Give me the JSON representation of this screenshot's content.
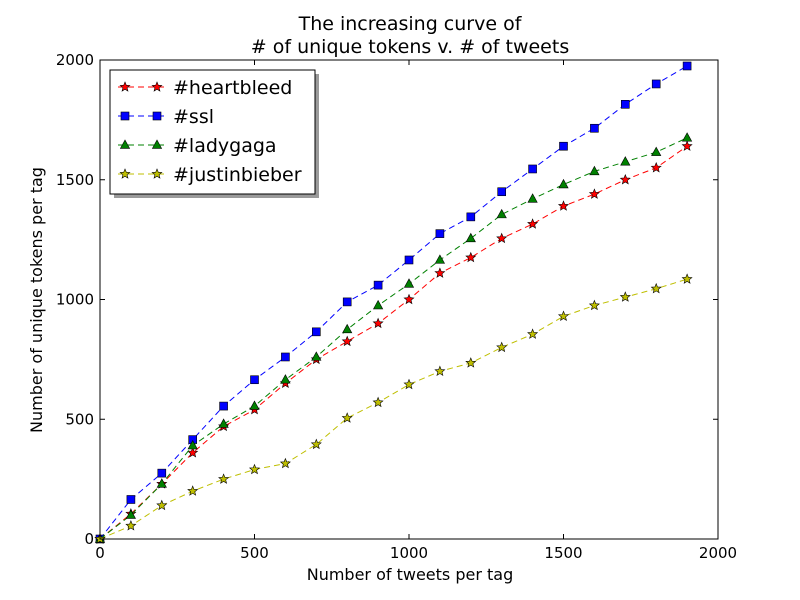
{
  "chart_data": {
    "type": "line",
    "title_lines": [
      "The increasing curve of",
      "# of unique tokens v. # of tweets"
    ],
    "xlabel": "Number of tweets per tag",
    "ylabel": "Number of unique tokens per tag",
    "xlim": [
      0,
      2000
    ],
    "ylim": [
      0,
      2000
    ],
    "xticks": [
      0,
      500,
      1000,
      1500,
      2000
    ],
    "yticks": [
      0,
      500,
      1000,
      1500,
      2000
    ],
    "xtick_labels": [
      "0",
      "500",
      "1000",
      "1500",
      "2000"
    ],
    "ytick_labels": [
      "0",
      "500",
      "1000",
      "1500",
      "2000"
    ],
    "grid": false,
    "legend_position": "top-left",
    "x": [
      0,
      100,
      200,
      300,
      400,
      500,
      600,
      700,
      800,
      900,
      1000,
      1100,
      1200,
      1300,
      1400,
      1500,
      1600,
      1700,
      1800,
      1900
    ],
    "series": [
      {
        "name": "#heartbleed",
        "color": "#ff0000",
        "marker": "star",
        "values": [
          0,
          105,
          230,
          360,
          470,
          540,
          650,
          750,
          825,
          900,
          1000,
          1110,
          1175,
          1255,
          1315,
          1390,
          1440,
          1500,
          1550,
          1640
        ]
      },
      {
        "name": "#ssl",
        "color": "#0000ff",
        "marker": "square",
        "values": [
          0,
          165,
          275,
          415,
          555,
          665,
          760,
          865,
          990,
          1060,
          1165,
          1275,
          1345,
          1450,
          1545,
          1640,
          1715,
          1815,
          1900,
          1975
        ]
      },
      {
        "name": "#ladygaga",
        "color": "#008000",
        "marker": "triangle",
        "values": [
          0,
          100,
          230,
          390,
          480,
          555,
          665,
          760,
          875,
          975,
          1065,
          1165,
          1255,
          1355,
          1420,
          1480,
          1535,
          1575,
          1615,
          1675
        ]
      },
      {
        "name": "#justinbieber",
        "color": "#bfbf00",
        "marker": "star",
        "values": [
          0,
          55,
          140,
          200,
          250,
          290,
          315,
          395,
          505,
          570,
          645,
          700,
          735,
          800,
          855,
          930,
          975,
          1010,
          1045,
          1085
        ]
      }
    ]
  }
}
